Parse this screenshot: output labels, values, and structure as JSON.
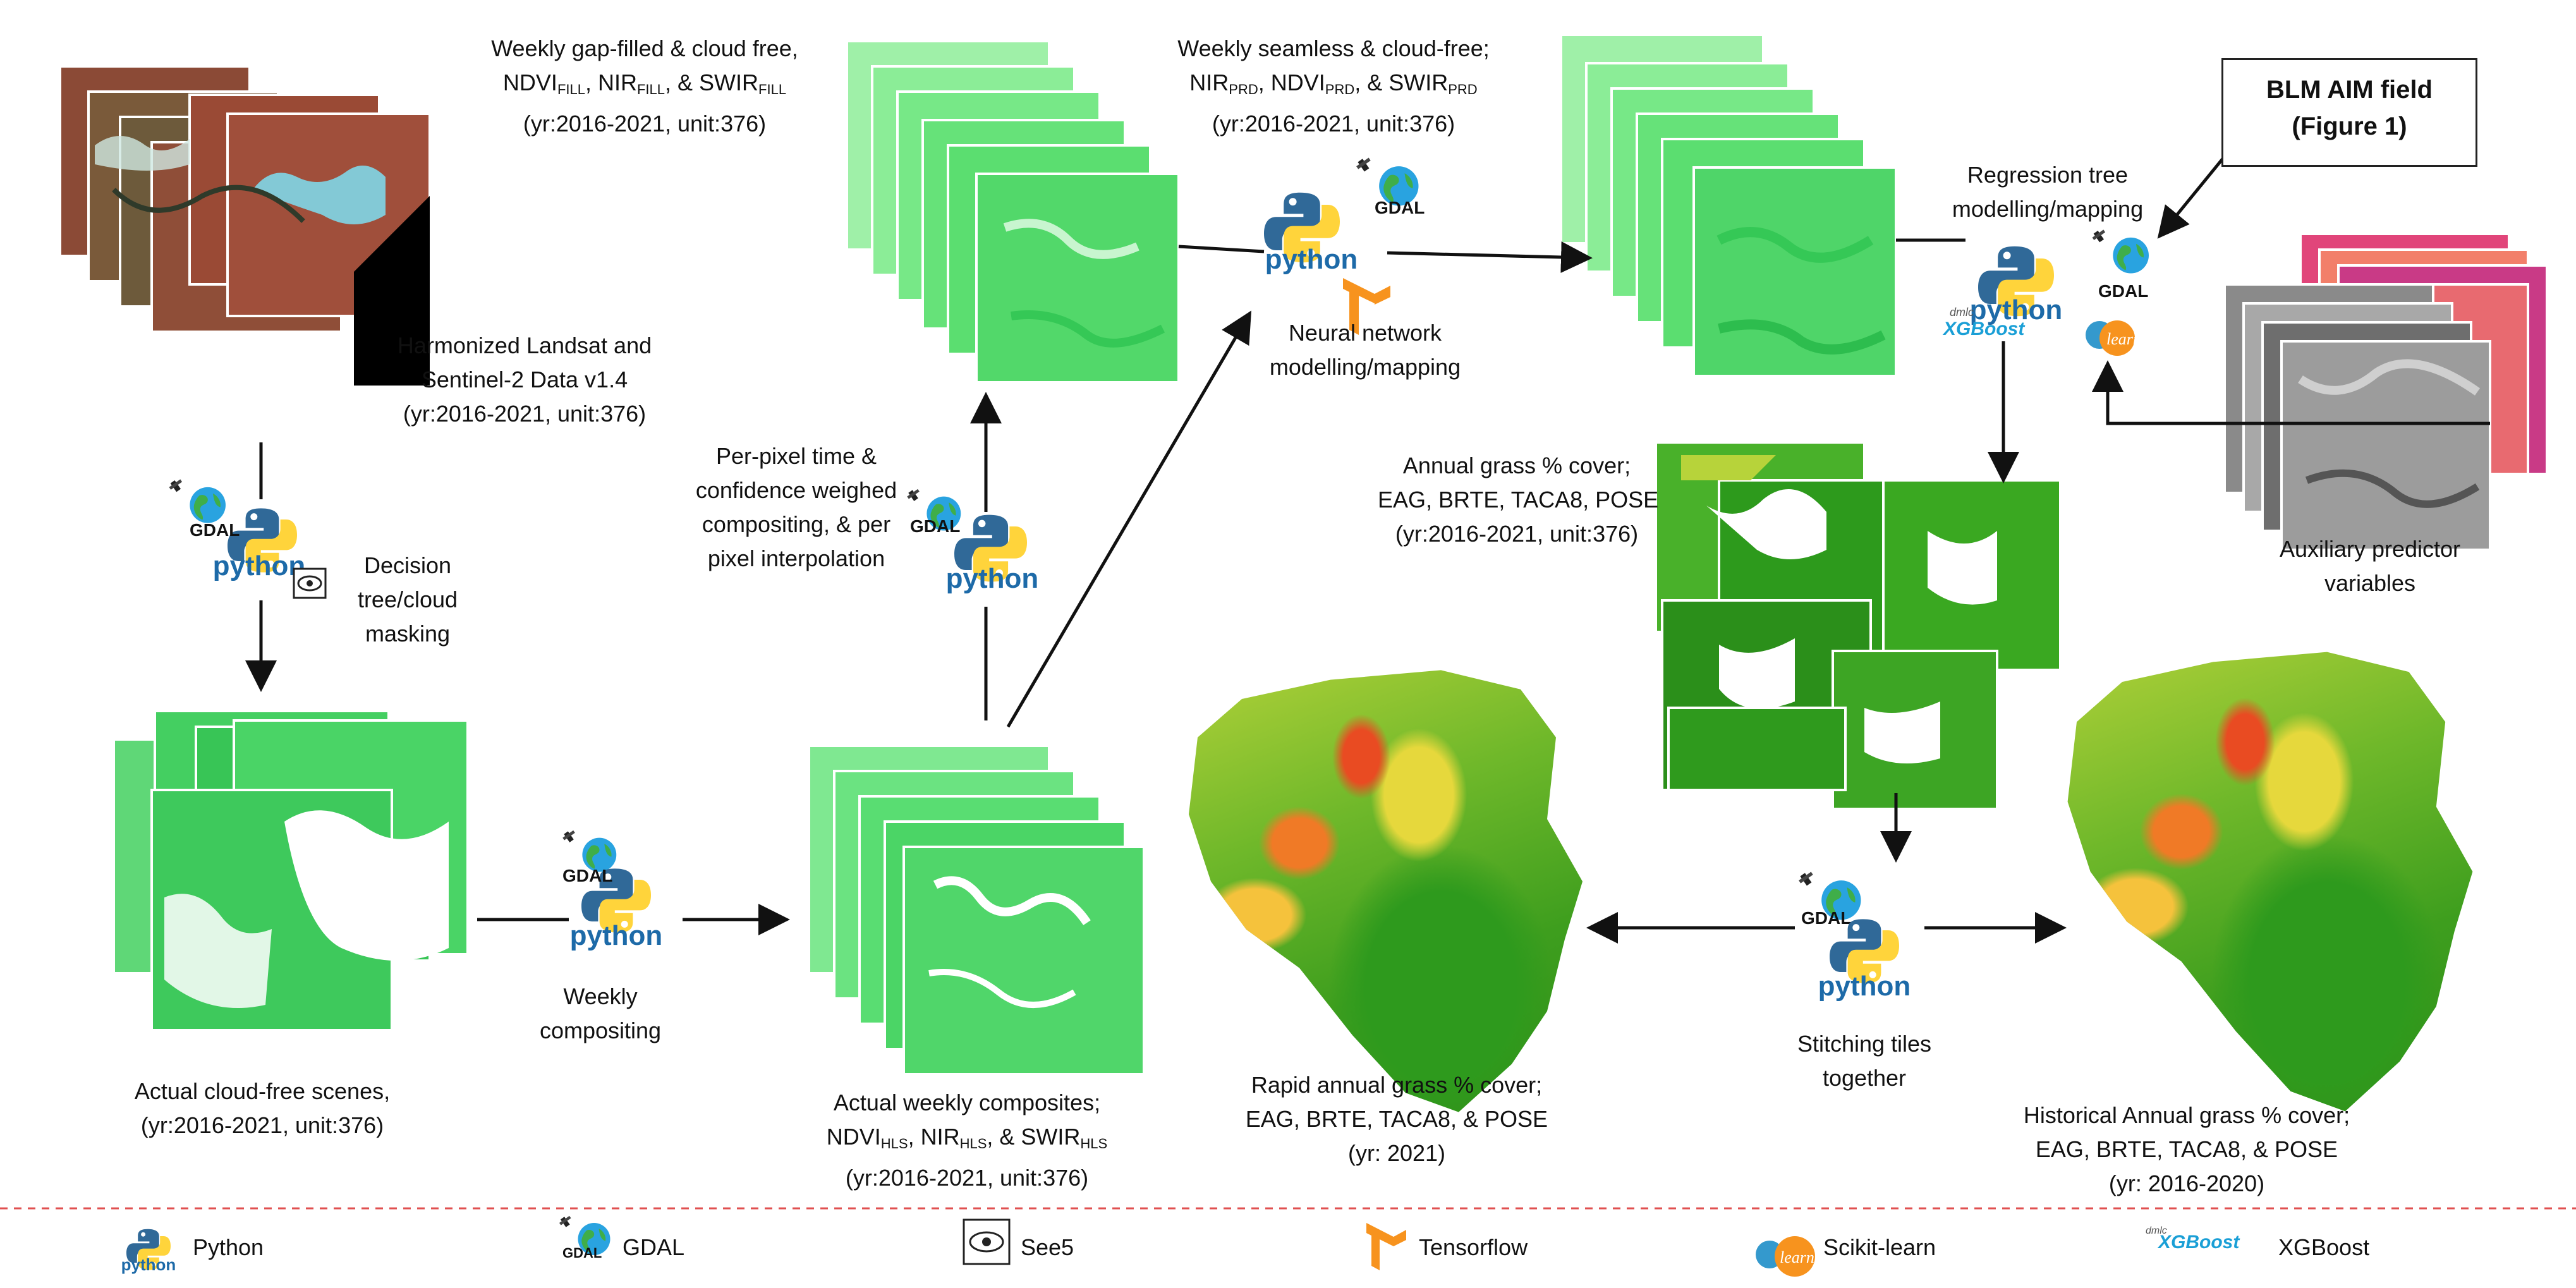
{
  "blm": {
    "line1": "BLM AIM field",
    "line2": "(Figure 1)"
  },
  "nodes": {
    "hls": {
      "line1": "Harmonized Landsat and",
      "line2": "Sentinel-2 Data v1.4",
      "line3": "(yr:2016-2021, unit:376)"
    },
    "decision": {
      "line1": "Decision",
      "line2": "tree/cloud",
      "line3": "masking"
    },
    "cloudfree": {
      "line1": "Actual cloud-free scenes,",
      "line2": "(yr:2016-2021, unit:376)"
    },
    "weekly_compositing": {
      "line1": "Weekly",
      "line2": "compositing"
    },
    "weekly_composites": {
      "line1": "Actual weekly composites;",
      "ndvi": "NDVI",
      "ndvi_sub": "HLS",
      "nir": ", NIR",
      "nir_sub": "HLS",
      "swir": ", & SWIR",
      "swir_sub": "HLS",
      "line3": "(yr:2016-2021, unit:376)"
    },
    "perpixel": {
      "line1": "Per-pixel time &",
      "line2": "confidence weighed",
      "line3": "compositing, & per",
      "line4": "pixel interpolation"
    },
    "gapfilled": {
      "line1": "Weekly gap-filled & cloud free,",
      "ndvi": "NDVI",
      "ndvi_sub": "FILL",
      "nir": ", NIR",
      "nir_sub": "FILL",
      "swir": ", & SWIR",
      "swir_sub": "FILL",
      "line3": "(yr:2016-2021, unit:376)"
    },
    "nn": {
      "line1": "Neural network",
      "line2": "modelling/mapping"
    },
    "seamless": {
      "line1": "Weekly seamless & cloud-free;",
      "nir": "NIR",
      "nir_sub": "PRD",
      "ndvi": ", NDVI",
      "ndvi_sub": "PRD",
      "swir": ", & SWIR",
      "swir_sub": "PRD",
      "line3": "(yr:2016-2021, unit:376)"
    },
    "regression": {
      "line1": "Regression tree",
      "line2": "modelling/mapping"
    },
    "aux": {
      "line1": "Auxiliary predictor",
      "line2": "variables"
    },
    "annual": {
      "line1": "Annual grass % cover;",
      "line2": "EAG, BRTE, TACA8, POSE",
      "line3": "(yr:2016-2021, unit:376)"
    },
    "stitch": {
      "line1": "Stitching tiles",
      "line2": "together"
    },
    "rapid": {
      "line1": "Rapid  annual grass % cover;",
      "line2": "EAG, BRTE, TACA8, & POSE",
      "line3": "(yr: 2021)"
    },
    "historical": {
      "line1": "Historical Annual grass % cover;",
      "line2": "EAG, BRTE, TACA8, & POSE",
      "line3": "(yr: 2016-2020)"
    }
  },
  "logos": {
    "python": "python",
    "gdal": "GDAL",
    "xgboost": "XGBoost",
    "learn": "learn",
    "dmlc": "dmlc"
  },
  "legend": {
    "python": "Python",
    "gdal": "GDAL",
    "see5": "See5",
    "tensorflow": "Tensorflow",
    "sklearn": "Scikit-learn",
    "xgboost": "XGBoost"
  },
  "colors": {
    "arrow": "#111111",
    "divider": "#e05050",
    "python_blue": "#306998",
    "python_yellow": "#ffd43b",
    "tf_orange": "#f7931e",
    "xgb_blue": "#1a9fd6",
    "sklearn_orange": "#f7931e",
    "sklearn_blue": "#3499cd"
  }
}
